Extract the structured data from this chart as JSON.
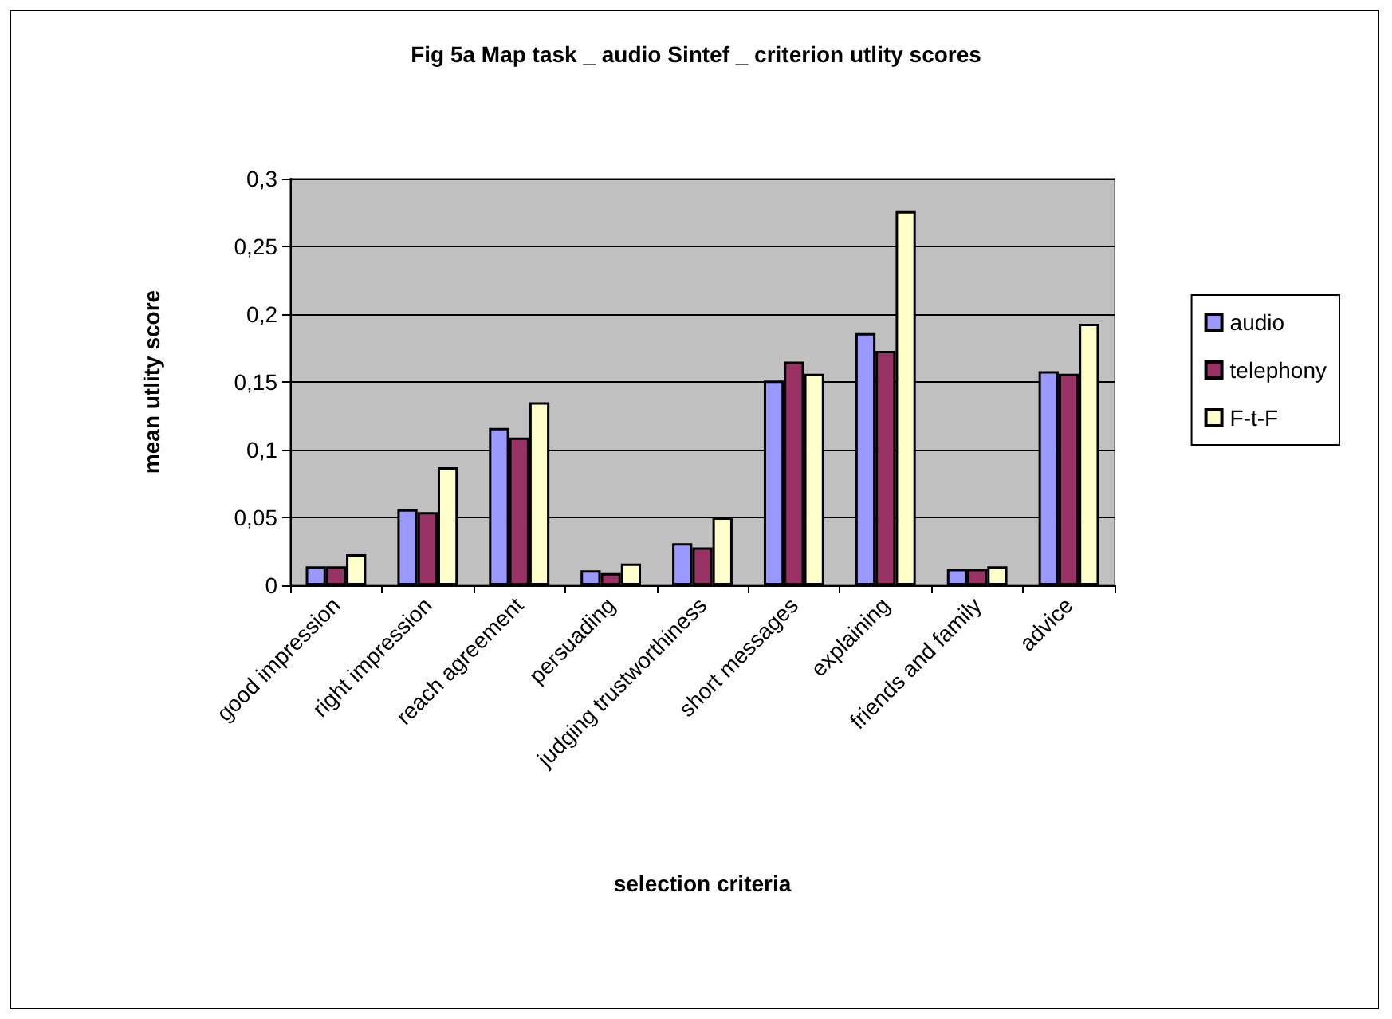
{
  "chart_data": {
    "type": "bar",
    "title": "Fig 5a Map task _ audio Sintef _ criterion utlity scores",
    "xlabel": "selection criteria",
    "ylabel": "mean utlity score",
    "categories": [
      "good impression",
      "right impression",
      "reach agreement",
      "persuading",
      "judging trustworthiness",
      "short messages",
      "explaining",
      "friends and family",
      "advice"
    ],
    "series": [
      {
        "name": "audio",
        "color": "#9999ff",
        "values": [
          0.014,
          0.056,
          0.116,
          0.011,
          0.031,
          0.151,
          0.186,
          0.012,
          0.158
        ]
      },
      {
        "name": "telephony",
        "color": "#993366",
        "values": [
          0.014,
          0.054,
          0.109,
          0.009,
          0.028,
          0.165,
          0.173,
          0.012,
          0.156
        ]
      },
      {
        "name": "F-t-F",
        "color": "#ffffcc",
        "values": [
          0.023,
          0.087,
          0.135,
          0.016,
          0.05,
          0.156,
          0.276,
          0.014,
          0.193
        ]
      }
    ],
    "ylim": [
      0,
      0.3
    ],
    "yticks": [
      0,
      {
        "value": 0.05,
        "label": "0,05"
      },
      {
        "value": 0.1,
        "label": "0,1"
      },
      {
        "value": 0.15,
        "label": "0,15"
      },
      {
        "value": 0.2,
        "label": "0,2"
      },
      {
        "value": 0.25,
        "label": "0,25"
      },
      {
        "value": 0.3,
        "label": "0,3"
      }
    ],
    "grid": "y",
    "legend": "right"
  }
}
